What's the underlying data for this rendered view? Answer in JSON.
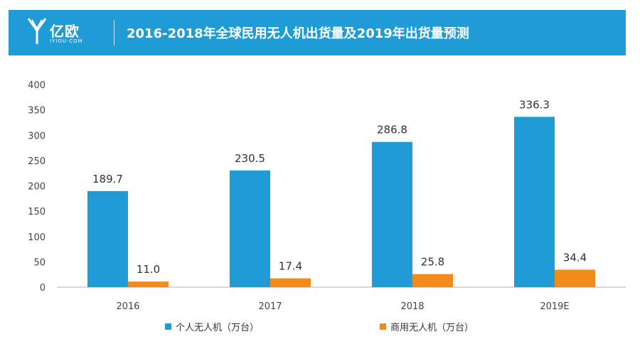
{
  "header": {
    "logo_text": "亿欧",
    "logo_sub": "IYIOU·COM",
    "title": "2016-2018年全球民用无人机出货量及2019年出货量预测"
  },
  "colors": {
    "header_bg": "#1f9bd6",
    "series_personal": "#1f9bd6",
    "series_commercial": "#f28a1c"
  },
  "chart_data": {
    "type": "bar",
    "title": "2016-2018年全球民用无人机出货量及2019年出货量预测",
    "categories": [
      "2016",
      "2017",
      "2018",
      "2019E"
    ],
    "series": [
      {
        "name": "个人无人机（万台）",
        "values": [
          189.7,
          230.5,
          286.8,
          336.3
        ],
        "labels": [
          "189.7",
          "230.5",
          "286.8",
          "336.3"
        ],
        "color": "#1f9bd6"
      },
      {
        "name": "商用无人机（万台）",
        "values": [
          11.0,
          17.4,
          25.8,
          34.4
        ],
        "labels": [
          "11.0",
          "17.4",
          "25.8",
          "34.4"
        ],
        "color": "#f28a1c"
      }
    ],
    "ylim": [
      0,
      400
    ],
    "yticks": [
      0,
      50,
      100,
      150,
      200,
      250,
      300,
      350,
      400
    ],
    "grid": false,
    "legend_position": "bottom"
  }
}
